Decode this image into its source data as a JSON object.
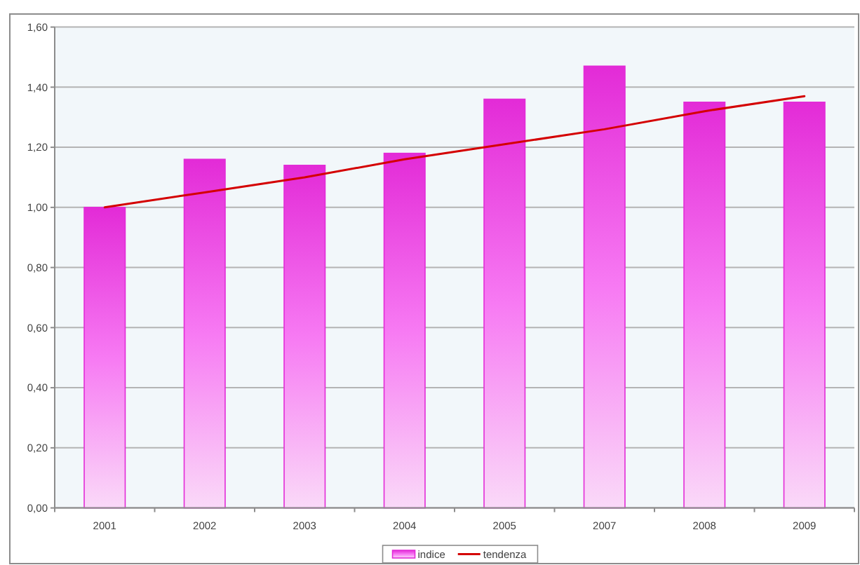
{
  "chart_data": {
    "type": "bar",
    "categories": [
      "2001",
      "2002",
      "2003",
      "2004",
      "2005",
      "2007",
      "2008",
      "2009"
    ],
    "series": [
      {
        "name": "indice",
        "color": "#e32bd7",
        "values": [
          1.0,
          1.16,
          1.14,
          1.18,
          1.36,
          1.47,
          1.35,
          1.35
        ]
      },
      {
        "name": "tendenza",
        "type": "line",
        "color": "#d40000",
        "values": [
          1.0,
          1.05,
          1.1,
          1.16,
          1.21,
          1.26,
          1.32,
          1.37
        ]
      }
    ],
    "ylim": [
      0,
      1.6
    ],
    "yticks": [
      {
        "value": 0,
        "label": "0,00"
      },
      {
        "value": 0.2,
        "label": "0,20"
      },
      {
        "value": 0.4,
        "label": "0,40"
      },
      {
        "value": 0.6,
        "label": "0,60"
      },
      {
        "value": 0.8,
        "label": "0,80"
      },
      {
        "value": 1.0,
        "label": "1,00"
      },
      {
        "value": 1.2,
        "label": "1,20"
      },
      {
        "value": 1.4,
        "label": "1,40"
      },
      {
        "value": 1.6,
        "label": "1,60"
      }
    ],
    "grid": "y",
    "legend": "bottom",
    "line_style": "solid"
  }
}
